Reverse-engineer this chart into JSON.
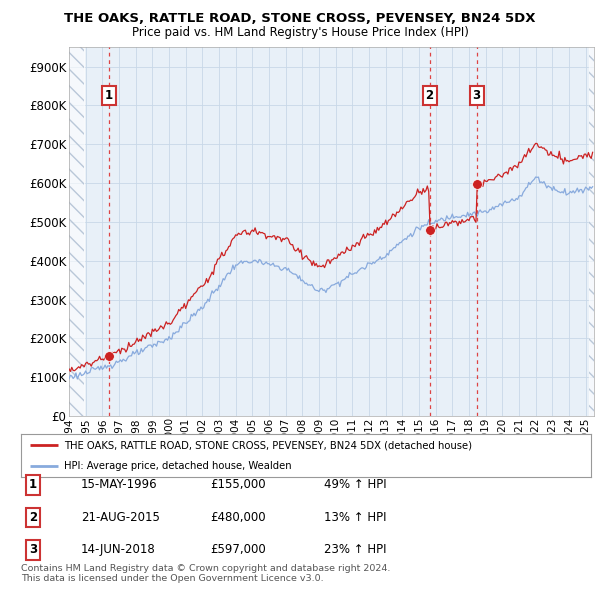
{
  "title": "THE OAKS, RATTLE ROAD, STONE CROSS, PEVENSEY, BN24 5DX",
  "subtitle": "Price paid vs. HM Land Registry's House Price Index (HPI)",
  "ylim": [
    0,
    950000
  ],
  "yticks": [
    0,
    100000,
    200000,
    300000,
    400000,
    500000,
    600000,
    700000,
    800000,
    900000
  ],
  "ytick_labels": [
    "£0",
    "£100K",
    "£200K",
    "£300K",
    "£400K",
    "£500K",
    "£600K",
    "£700K",
    "£800K",
    "£900K"
  ],
  "line_color_red": "#cc2222",
  "line_color_blue": "#88aadd",
  "marker_color": "#cc2222",
  "grid_color": "#c8d8e8",
  "sale_dates": [
    "1996-05-15",
    "2015-08-21",
    "2018-06-14"
  ],
  "sale_prices": [
    155000,
    480000,
    597000
  ],
  "sale_labels": [
    "1",
    "2",
    "3"
  ],
  "legend_label_red": "THE OAKS, RATTLE ROAD, STONE CROSS, PEVENSEY, BN24 5DX (detached house)",
  "legend_label_blue": "HPI: Average price, detached house, Wealden",
  "table_rows": [
    [
      "1",
      "15-MAY-1996",
      "£155,000",
      "49% ↑ HPI"
    ],
    [
      "2",
      "21-AUG-2015",
      "£480,000",
      "13% ↑ HPI"
    ],
    [
      "3",
      "14-JUN-2018",
      "£597,000",
      "23% ↑ HPI"
    ]
  ],
  "footer": "Contains HM Land Registry data © Crown copyright and database right 2024.\nThis data is licensed under the Open Government Licence v3.0.",
  "background_color": "#ffffff",
  "plot_bg_color": "#e8f0f8",
  "xlim_start": 1994.0,
  "xlim_end": 2025.5,
  "hatch_end": 1994.92
}
